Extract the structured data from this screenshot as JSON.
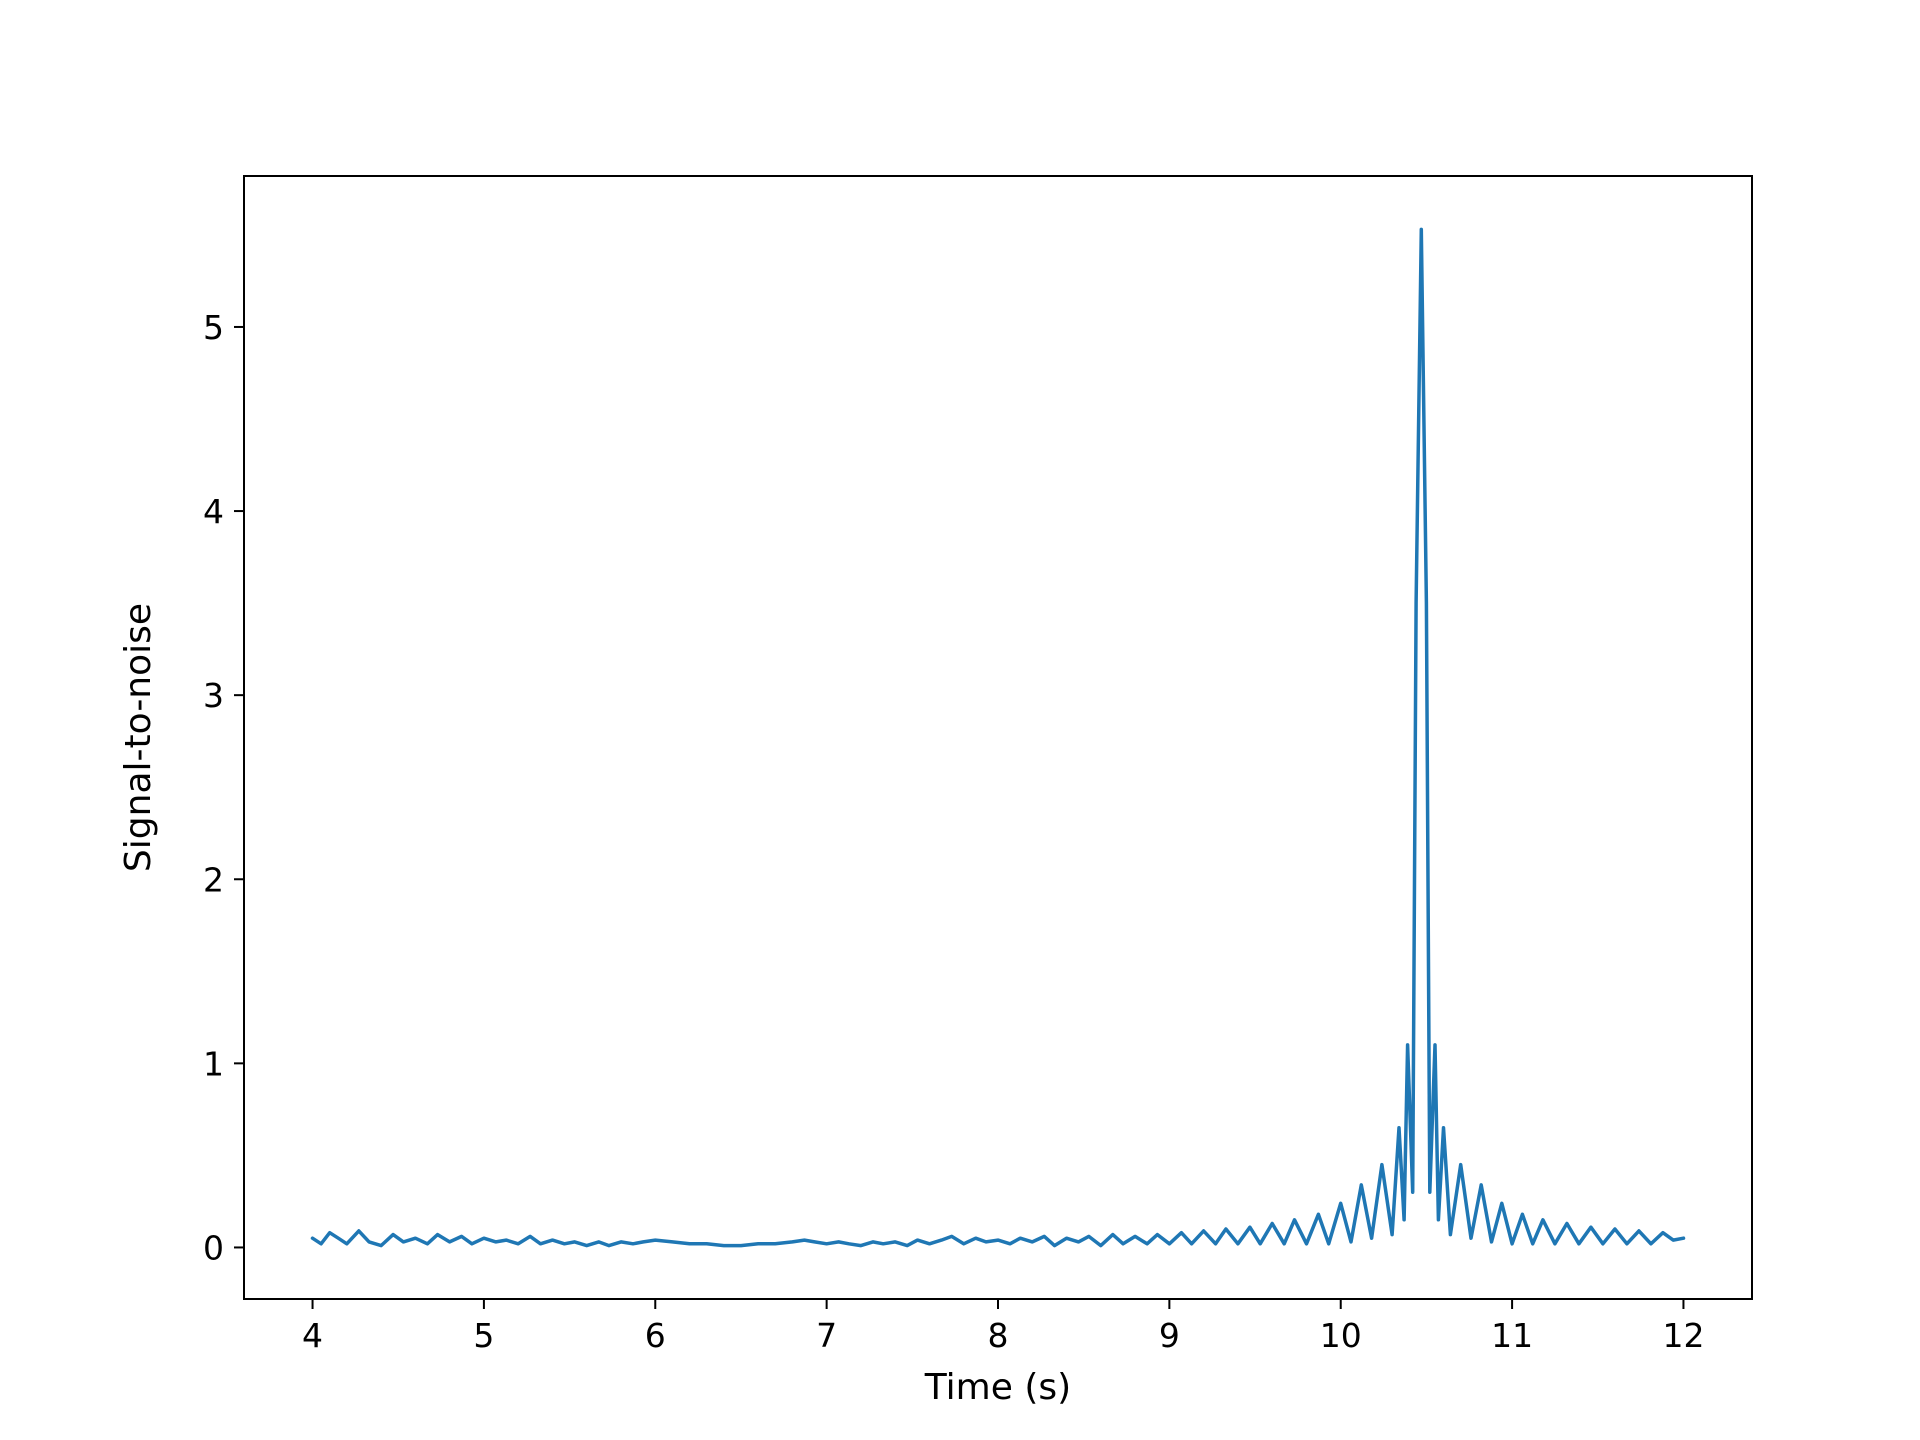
{
  "chart_data": {
    "type": "line",
    "title": "",
    "xlabel": "Time (s)",
    "ylabel": "Signal-to-noise",
    "xlim": [
      3.6,
      12.4
    ],
    "ylim": [
      -0.28,
      5.82
    ],
    "xticks": [
      4,
      5,
      6,
      7,
      8,
      9,
      10,
      11,
      12
    ],
    "yticks": [
      0,
      1,
      2,
      3,
      4,
      5
    ],
    "grid": false,
    "legend": "none",
    "line_color": "#1f77b4",
    "series": [
      {
        "name": "",
        "peak": {
          "x": 10.47,
          "y": 5.53
        },
        "points": [
          [
            4.0,
            0.05
          ],
          [
            4.05,
            0.02
          ],
          [
            4.1,
            0.08
          ],
          [
            4.15,
            0.05
          ],
          [
            4.2,
            0.02
          ],
          [
            4.27,
            0.09
          ],
          [
            4.33,
            0.03
          ],
          [
            4.4,
            0.01
          ],
          [
            4.47,
            0.07
          ],
          [
            4.53,
            0.03
          ],
          [
            4.6,
            0.05
          ],
          [
            4.67,
            0.02
          ],
          [
            4.73,
            0.07
          ],
          [
            4.8,
            0.03
          ],
          [
            4.87,
            0.06
          ],
          [
            4.93,
            0.02
          ],
          [
            5.0,
            0.05
          ],
          [
            5.07,
            0.03
          ],
          [
            5.13,
            0.04
          ],
          [
            5.2,
            0.02
          ],
          [
            5.27,
            0.06
          ],
          [
            5.33,
            0.02
          ],
          [
            5.4,
            0.04
          ],
          [
            5.47,
            0.02
          ],
          [
            5.53,
            0.03
          ],
          [
            5.6,
            0.01
          ],
          [
            5.67,
            0.03
          ],
          [
            5.73,
            0.01
          ],
          [
            5.8,
            0.03
          ],
          [
            5.87,
            0.02
          ],
          [
            5.93,
            0.03
          ],
          [
            6.0,
            0.04
          ],
          [
            6.1,
            0.03
          ],
          [
            6.2,
            0.02
          ],
          [
            6.3,
            0.02
          ],
          [
            6.4,
            0.01
          ],
          [
            6.5,
            0.01
          ],
          [
            6.6,
            0.02
          ],
          [
            6.7,
            0.02
          ],
          [
            6.8,
            0.03
          ],
          [
            6.87,
            0.04
          ],
          [
            6.93,
            0.03
          ],
          [
            7.0,
            0.02
          ],
          [
            7.07,
            0.03
          ],
          [
            7.13,
            0.02
          ],
          [
            7.2,
            0.01
          ],
          [
            7.27,
            0.03
          ],
          [
            7.33,
            0.02
          ],
          [
            7.4,
            0.03
          ],
          [
            7.47,
            0.01
          ],
          [
            7.53,
            0.04
          ],
          [
            7.6,
            0.02
          ],
          [
            7.67,
            0.04
          ],
          [
            7.73,
            0.06
          ],
          [
            7.8,
            0.02
          ],
          [
            7.87,
            0.05
          ],
          [
            7.93,
            0.03
          ],
          [
            8.0,
            0.04
          ],
          [
            8.07,
            0.02
          ],
          [
            8.13,
            0.05
          ],
          [
            8.2,
            0.03
          ],
          [
            8.27,
            0.06
          ],
          [
            8.33,
            0.01
          ],
          [
            8.4,
            0.05
          ],
          [
            8.47,
            0.03
          ],
          [
            8.53,
            0.06
          ],
          [
            8.6,
            0.01
          ],
          [
            8.67,
            0.07
          ],
          [
            8.73,
            0.02
          ],
          [
            8.8,
            0.06
          ],
          [
            8.87,
            0.02
          ],
          [
            8.93,
            0.07
          ],
          [
            9.0,
            0.02
          ],
          [
            9.07,
            0.08
          ],
          [
            9.13,
            0.02
          ],
          [
            9.2,
            0.09
          ],
          [
            9.27,
            0.02
          ],
          [
            9.33,
            0.1
          ],
          [
            9.4,
            0.02
          ],
          [
            9.47,
            0.11
          ],
          [
            9.53,
            0.02
          ],
          [
            9.6,
            0.13
          ],
          [
            9.67,
            0.02
          ],
          [
            9.73,
            0.15
          ],
          [
            9.8,
            0.02
          ],
          [
            9.87,
            0.18
          ],
          [
            9.93,
            0.02
          ],
          [
            10.0,
            0.24
          ],
          [
            10.06,
            0.03
          ],
          [
            10.12,
            0.34
          ],
          [
            10.18,
            0.05
          ],
          [
            10.24,
            0.45
          ],
          [
            10.3,
            0.07
          ],
          [
            10.34,
            0.65
          ],
          [
            10.37,
            0.15
          ],
          [
            10.39,
            1.1
          ],
          [
            10.42,
            0.3
          ],
          [
            10.44,
            3.5
          ],
          [
            10.47,
            5.53
          ],
          [
            10.5,
            3.5
          ],
          [
            10.52,
            0.3
          ],
          [
            10.55,
            1.1
          ],
          [
            10.57,
            0.15
          ],
          [
            10.6,
            0.65
          ],
          [
            10.64,
            0.07
          ],
          [
            10.7,
            0.45
          ],
          [
            10.76,
            0.05
          ],
          [
            10.82,
            0.34
          ],
          [
            10.88,
            0.03
          ],
          [
            10.94,
            0.24
          ],
          [
            11.0,
            0.02
          ],
          [
            11.06,
            0.18
          ],
          [
            11.12,
            0.02
          ],
          [
            11.18,
            0.15
          ],
          [
            11.25,
            0.02
          ],
          [
            11.32,
            0.13
          ],
          [
            11.39,
            0.02
          ],
          [
            11.46,
            0.11
          ],
          [
            11.53,
            0.02
          ],
          [
            11.6,
            0.1
          ],
          [
            11.67,
            0.02
          ],
          [
            11.74,
            0.09
          ],
          [
            11.81,
            0.02
          ],
          [
            11.88,
            0.08
          ],
          [
            11.94,
            0.04
          ],
          [
            12.0,
            0.05
          ]
        ]
      }
    ]
  }
}
